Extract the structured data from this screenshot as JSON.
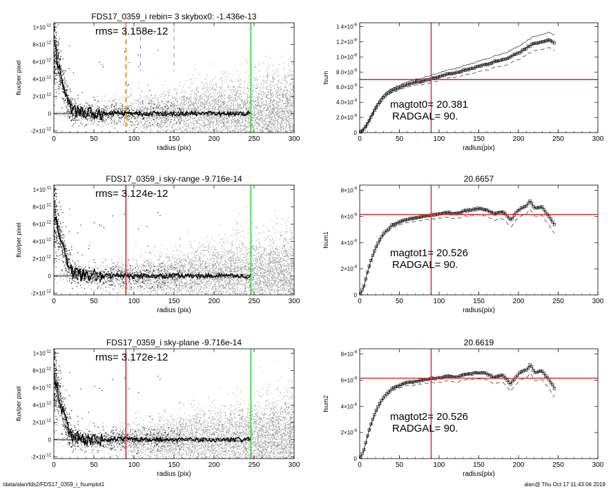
{
  "footer": {
    "path": "/data/alan/fds2/FDS17_0359_i_fsumplot1",
    "stamp": "alan@  Thu Oct 17 11:43:06 2019"
  },
  "chart_data": [
    {
      "type": "scatter",
      "title": "FDS17_0359_i rebin= 3    skybox0: -1.436e-13",
      "annotation": "rms= 3.158e-12",
      "xlabel": "radius (pix)",
      "ylabel": "flux/per pixel",
      "xlim": [
        0,
        300
      ],
      "ylim": [
        -2.2e-12,
        1.05e-11
      ],
      "xticks": [
        0,
        50,
        100,
        150,
        200,
        250,
        300
      ],
      "yticks": [
        {
          "v": -2e-12,
          "label": "-2×10",
          "exp": "-12"
        },
        {
          "v": 0,
          "label": "0",
          "exp": ""
        },
        {
          "v": 2e-12,
          "label": "2×10",
          "exp": "-12"
        },
        {
          "v": 4e-12,
          "label": "4×10",
          "exp": "-12"
        },
        {
          "v": 6e-12,
          "label": "6×10",
          "exp": "-12"
        },
        {
          "v": 8e-12,
          "label": "8×10",
          "exp": "-12"
        },
        {
          "v": 1e-11,
          "label": "1×10",
          "exp": "-11"
        }
      ],
      "vlines": [
        {
          "x": 90,
          "color": "#f39a1e",
          "dash": true
        },
        {
          "x": 246,
          "color": "#2ed12e",
          "dash": false
        }
      ],
      "profile_r": [
        2,
        4,
        6,
        8,
        10,
        12,
        14,
        16,
        18,
        20,
        22,
        24,
        26,
        28,
        30,
        34,
        38,
        44,
        50,
        60,
        70,
        80,
        90,
        100,
        120,
        140,
        160,
        180,
        200,
        220,
        240,
        246
      ],
      "profile": [
        7.2e-12,
        6.4e-12,
        5.5e-12,
        4.6e-12,
        3.8e-12,
        3e-12,
        2.4e-12,
        1.8e-12,
        1.3e-12,
        1e-12,
        7e-13,
        5e-13,
        3.5e-13,
        2.5e-13,
        1.5e-13,
        1e-13,
        5e-14,
        2e-14,
        0.0,
        -5e-14,
        3e-14,
        5e-14,
        1e-13,
        -5e-14,
        0.0,
        -5e-14,
        2e-14,
        -3e-14,
        0.0,
        -2e-14,
        0.0,
        0.0
      ]
    },
    {
      "type": "line",
      "title": "",
      "xlabel": "radius(pix)",
      "ylabel": "fsum",
      "xlim": [
        0,
        300
      ],
      "ylim": [
        0,
        1.45e-08
      ],
      "xticks": [
        0,
        50,
        100,
        150,
        200,
        250,
        300
      ],
      "yticks": [
        {
          "v": 0,
          "label": "0",
          "exp": ""
        },
        {
          "v": 2e-09,
          "label": "2.0×10",
          "exp": "-9"
        },
        {
          "v": 4e-09,
          "label": "4.0×10",
          "exp": "-9"
        },
        {
          "v": 6e-09,
          "label": "6.0×10",
          "exp": "-9"
        },
        {
          "v": 8e-09,
          "label": "8.0×10",
          "exp": "-9"
        },
        {
          "v": 1e-08,
          "label": "1.0×10",
          "exp": "-8"
        },
        {
          "v": 1.2e-08,
          "label": "1.2×10",
          "exp": "-8"
        },
        {
          "v": 1.4e-08,
          "label": "1.4×10",
          "exp": "-8"
        }
      ],
      "vline_x": 90,
      "hline_y": 7e-09,
      "annotations": [
        "magtot0=  20.381",
        "RADGAL=      90."
      ],
      "x": [
        0,
        5,
        10,
        15,
        20,
        25,
        30,
        40,
        50,
        60,
        70,
        80,
        90,
        100,
        110,
        120,
        130,
        140,
        150,
        160,
        170,
        180,
        190,
        200,
        210,
        220,
        230,
        240,
        246
      ],
      "y": [
        0,
        4e-10,
        1.2e-09,
        2.2e-09,
        3.2e-09,
        4e-09,
        4.7e-09,
        5.5e-09,
        6e-09,
        6.3e-09,
        6.6e-09,
        6.8e-09,
        7.1e-09,
        7.4e-09,
        7.7e-09,
        7.9e-09,
        8.2e-09,
        8.4e-09,
        8.8e-09,
        9e-09,
        9.4e-09,
        9.6e-09,
        1e-08,
        1.05e-08,
        1.12e-08,
        1.18e-08,
        1.2e-08,
        1.22e-08,
        1.18e-08
      ],
      "upper_offset": 9e-10,
      "lower_offset": 9e-10
    },
    {
      "type": "scatter",
      "title": "FDS17_0359_i sky-range -9.716e-14",
      "annotation": "rms= 3.124e-12",
      "xlabel": "radius (pix)",
      "ylabel": "flux/per pixel",
      "xlim": [
        0,
        300
      ],
      "ylim": [
        -2.2e-12,
        1.05e-11
      ],
      "xticks": [
        0,
        50,
        100,
        150,
        200,
        250,
        300
      ],
      "yticks": [
        {
          "v": -2e-12,
          "label": "-2×10",
          "exp": "-12"
        },
        {
          "v": 0,
          "label": "0",
          "exp": ""
        },
        {
          "v": 2e-12,
          "label": "2×10",
          "exp": "-12"
        },
        {
          "v": 4e-12,
          "label": "4×10",
          "exp": "-12"
        },
        {
          "v": 6e-12,
          "label": "6×10",
          "exp": "-12"
        },
        {
          "v": 8e-12,
          "label": "8×10",
          "exp": "-12"
        },
        {
          "v": 1e-11,
          "label": "1×10",
          "exp": "-11"
        }
      ],
      "vlines": [
        {
          "x": 90,
          "color": "#e02020",
          "dash": false
        },
        {
          "x": 246,
          "color": "#2ed12e",
          "dash": false
        }
      ],
      "profile_r": [
        2,
        4,
        6,
        8,
        10,
        12,
        14,
        16,
        18,
        20,
        22,
        24,
        26,
        28,
        30,
        34,
        38,
        44,
        50,
        60,
        70,
        80,
        90,
        100,
        120,
        140,
        160,
        180,
        200,
        220,
        240,
        246
      ],
      "profile": [
        7e-12,
        6.2e-12,
        5.4e-12,
        4.5e-12,
        3.7e-12,
        2.9e-12,
        2.3e-12,
        1.7e-12,
        1.2e-12,
        9e-13,
        6e-13,
        4.5e-13,
        3e-13,
        2e-13,
        1.2e-13,
        8e-14,
        4e-14,
        1e-14,
        0.0,
        -5e-14,
        2e-14,
        4e-14,
        8e-14,
        -4e-14,
        0.0,
        -4e-14,
        2e-14,
        -2e-14,
        0.0,
        -2e-14,
        0.0,
        0.0
      ]
    },
    {
      "type": "line",
      "title": "20.6657",
      "xlabel": "radius(pix)",
      "ylabel": "fsum1",
      "xlim": [
        0,
        300
      ],
      "ylim": [
        0,
        8.4e-09
      ],
      "xticks": [
        0,
        50,
        100,
        150,
        200,
        250,
        300
      ],
      "yticks": [
        {
          "v": 0,
          "label": "0",
          "exp": ""
        },
        {
          "v": 2e-09,
          "label": "2×10",
          "exp": "-9"
        },
        {
          "v": 4e-09,
          "label": "4×10",
          "exp": "-9"
        },
        {
          "v": 6e-09,
          "label": "6×10",
          "exp": "-9"
        },
        {
          "v": 8e-09,
          "label": "8×10",
          "exp": "-9"
        }
      ],
      "vline_x": 90,
      "hline_y": 6.15e-09,
      "annotations": [
        "magtot1=  20.526",
        "RADGAL=      90."
      ],
      "x": [
        0,
        5,
        10,
        15,
        20,
        25,
        30,
        40,
        50,
        60,
        70,
        80,
        90,
        100,
        110,
        120,
        130,
        140,
        150,
        160,
        170,
        180,
        190,
        200,
        210,
        215,
        220,
        230,
        240,
        246
      ],
      "y": [
        0,
        6e-10,
        1.8e-09,
        2.8e-09,
        3.6e-09,
        4.2e-09,
        4.7e-09,
        5.3e-09,
        5.6e-09,
        5.8e-09,
        5.9e-09,
        6e-09,
        6.1e-09,
        6.2e-09,
        6.3e-09,
        6.2e-09,
        6.4e-09,
        6.5e-09,
        6.6e-09,
        6.5e-09,
        6.2e-09,
        6.4e-09,
        5.7e-09,
        6.5e-09,
        6.8e-09,
        7.2e-09,
        6.6e-09,
        6.7e-09,
        5.9e-09,
        5.3e-09
      ],
      "lower_offset": 6e-10
    },
    {
      "type": "scatter",
      "title": "FDS17_0359_i sky-plane -9.716e-14",
      "annotation": "rms= 3.172e-12",
      "xlabel": "radius (pix)",
      "ylabel": "flux/per pixel",
      "xlim": [
        0,
        300
      ],
      "ylim": [
        -2.2e-12,
        1.05e-11
      ],
      "xticks": [
        0,
        50,
        100,
        150,
        200,
        250,
        300
      ],
      "yticks": [
        {
          "v": -2e-12,
          "label": "-2×10",
          "exp": "-12"
        },
        {
          "v": 0,
          "label": "0",
          "exp": ""
        },
        {
          "v": 2e-12,
          "label": "2×10",
          "exp": "-12"
        },
        {
          "v": 4e-12,
          "label": "4×10",
          "exp": "-12"
        },
        {
          "v": 6e-12,
          "label": "6×10",
          "exp": "-12"
        },
        {
          "v": 8e-12,
          "label": "8×10",
          "exp": "-12"
        },
        {
          "v": 1e-11,
          "label": "1×10",
          "exp": "-11"
        }
      ],
      "vlines": [
        {
          "x": 90,
          "color": "#e02020",
          "dash": false
        },
        {
          "x": 246,
          "color": "#2ed12e",
          "dash": false
        }
      ],
      "profile_r": [
        2,
        4,
        6,
        8,
        10,
        12,
        14,
        16,
        18,
        20,
        22,
        24,
        26,
        28,
        30,
        34,
        38,
        44,
        50,
        60,
        70,
        80,
        90,
        100,
        120,
        140,
        160,
        180,
        200,
        220,
        240,
        246
      ],
      "profile": [
        7e-12,
        6.2e-12,
        5.4e-12,
        4.5e-12,
        3.7e-12,
        2.9e-12,
        2.3e-12,
        1.7e-12,
        1.2e-12,
        9e-13,
        6e-13,
        4.5e-13,
        3e-13,
        2e-13,
        1.2e-13,
        8e-14,
        4e-14,
        1e-14,
        0.0,
        -5e-14,
        2e-14,
        4e-14,
        8e-14,
        -4e-14,
        0.0,
        -4e-14,
        2e-14,
        -2e-14,
        0.0,
        -2e-14,
        0.0,
        0.0
      ]
    },
    {
      "type": "line",
      "title": "20.6619",
      "xlabel": "radius(pix)",
      "ylabel": "fsum2",
      "xlim": [
        0,
        300
      ],
      "ylim": [
        0,
        8.4e-09
      ],
      "xticks": [
        0,
        50,
        100,
        150,
        200,
        250,
        300
      ],
      "yticks": [
        {
          "v": 0,
          "label": "0",
          "exp": ""
        },
        {
          "v": 2e-09,
          "label": "2×10",
          "exp": "-9"
        },
        {
          "v": 4e-09,
          "label": "4×10",
          "exp": "-9"
        },
        {
          "v": 6e-09,
          "label": "6×10",
          "exp": "-9"
        },
        {
          "v": 8e-09,
          "label": "8×10",
          "exp": "-9"
        }
      ],
      "vline_x": 90,
      "hline_y": 6.15e-09,
      "annotations": [
        "magtot2=  20.526",
        "RADGAL=      90."
      ],
      "x": [
        0,
        5,
        10,
        15,
        20,
        25,
        30,
        40,
        50,
        60,
        70,
        80,
        90,
        100,
        110,
        120,
        130,
        140,
        150,
        160,
        170,
        180,
        190,
        200,
        210,
        215,
        220,
        230,
        240,
        246
      ],
      "y": [
        0,
        6e-10,
        1.8e-09,
        2.8e-09,
        3.6e-09,
        4.2e-09,
        4.7e-09,
        5.3e-09,
        5.6e-09,
        5.8e-09,
        5.9e-09,
        6e-09,
        6.1e-09,
        6.2e-09,
        6.3e-09,
        6.2e-09,
        6.4e-09,
        6.5e-09,
        6.6e-09,
        6.5e-09,
        6.2e-09,
        6.4e-09,
        5.7e-09,
        6.5e-09,
        6.8e-09,
        7.2e-09,
        6.6e-09,
        6.7e-09,
        5.9e-09,
        5.3e-09
      ],
      "lower_offset": 6e-10
    }
  ]
}
